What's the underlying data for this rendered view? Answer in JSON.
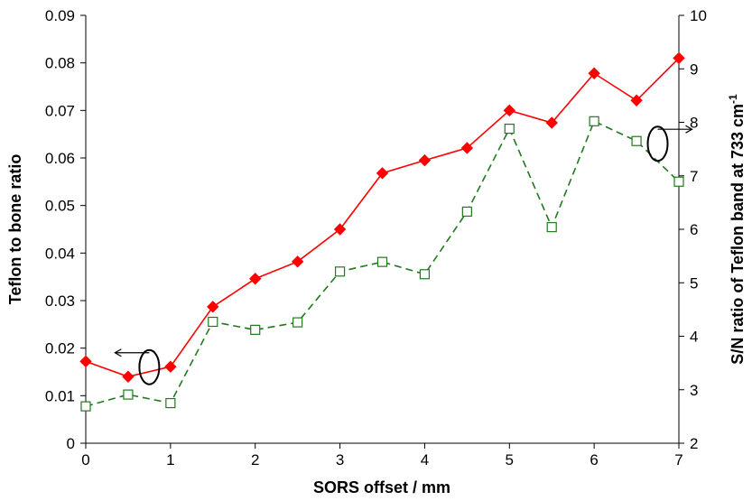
{
  "chart_data": {
    "type": "line",
    "x": [
      0,
      0.5,
      1,
      1.5,
      2,
      2.5,
      3,
      3.5,
      4,
      4.5,
      5,
      5.5,
      6,
      6.5,
      7
    ],
    "xlabel": "SORS offset / mm",
    "xlim": [
      0,
      7
    ],
    "xticks": [
      0,
      1,
      2,
      3,
      4,
      5,
      6,
      7
    ],
    "ylabel": "Teflon to bone ratio",
    "ylim": [
      0,
      0.09
    ],
    "yticks": [
      "0",
      "0.01",
      "0.02",
      "0.03",
      "0.04",
      "0.05",
      "0.06",
      "0.07",
      "0.08",
      "0.09"
    ],
    "y2label": "S/N ratio of Teflon band at 733 cm",
    "y2label_sup": "-1",
    "y2lim": [
      2,
      10
    ],
    "y2ticks": [
      2,
      3,
      4,
      5,
      6,
      7,
      8,
      9,
      10
    ],
    "grid": false,
    "series": [
      {
        "axis": "left",
        "color": "#ff0000",
        "marker": "filled-diamond",
        "linestyle": "solid",
        "values": [
          0.0172,
          0.014,
          0.0161,
          0.0287,
          0.0346,
          0.0382,
          0.045,
          0.0568,
          0.0595,
          0.0621,
          0.07,
          0.0674,
          0.0778,
          0.0721,
          0.081
        ]
      },
      {
        "axis": "right",
        "color": "#1e7a1e",
        "marker": "open-square",
        "linestyle": "dashed",
        "values": [
          2.69,
          2.91,
          2.75,
          4.27,
          4.12,
          4.26,
          5.21,
          5.39,
          5.16,
          6.33,
          7.88,
          6.04,
          8.02,
          7.65,
          6.89
        ]
      }
    ],
    "annotations": [
      {
        "type": "axis-indicator",
        "points_to": "left",
        "near_x": 0.75,
        "near_y": 0.016
      },
      {
        "type": "axis-indicator",
        "points_to": "right",
        "near_x": 6.75,
        "near_y": 7.6
      }
    ]
  }
}
